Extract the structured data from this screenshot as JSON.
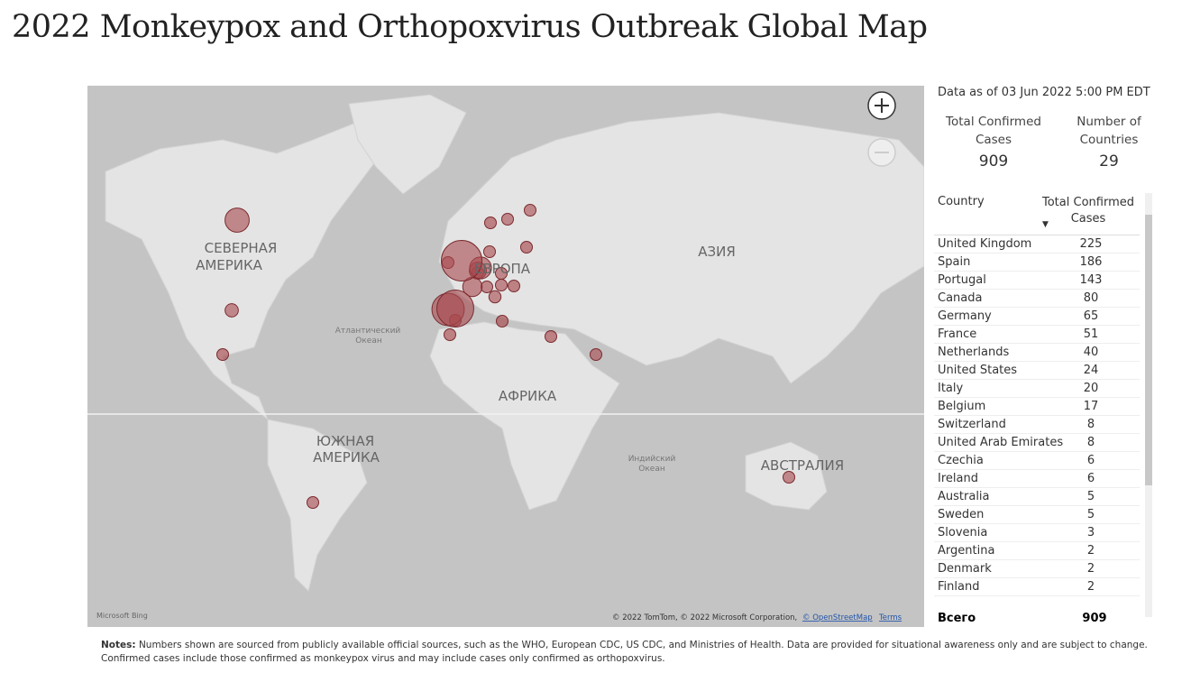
{
  "title": "2022 Monkeypox and Orthopoxvirus Outbreak Global Map",
  "map": {
    "labels": [
      "СЕВЕРНАЯ",
      "АМЕРИКА",
      "ЕВРОПА",
      "АЗИЯ",
      "АФРИКА",
      "ЮЖНАЯ",
      "АМЕРИКА",
      "АВСТРАЛИЯ"
    ],
    "oceans": [
      "Атлантический",
      "Океан",
      "Индийский",
      "Океан"
    ],
    "brand": "Microsoft Bing",
    "attribution": "© 2022 TomTom, © 2022 Microsoft Corporation,",
    "osm": "© OpenStreetMap",
    "terms": "Terms"
  },
  "as_of": "Data as of 03 Jun 2022 5:00 PM EDT",
  "kpis": [
    {
      "label": "Total Confirmed Cases",
      "value": "909"
    },
    {
      "label": "Number of Countries",
      "value": "29"
    }
  ],
  "table": {
    "columns": [
      "Country",
      "Total Confirmed Cases"
    ],
    "rows": [
      [
        "United Kingdom",
        225
      ],
      [
        "Spain",
        186
      ],
      [
        "Portugal",
        143
      ],
      [
        "Canada",
        80
      ],
      [
        "Germany",
        65
      ],
      [
        "France",
        51
      ],
      [
        "Netherlands",
        40
      ],
      [
        "United States",
        24
      ],
      [
        "Italy",
        20
      ],
      [
        "Belgium",
        17
      ],
      [
        "Switzerland",
        8
      ],
      [
        "United Arab Emirates",
        8
      ],
      [
        "Czechia",
        6
      ],
      [
        "Ireland",
        6
      ],
      [
        "Australia",
        5
      ],
      [
        "Sweden",
        5
      ],
      [
        "Slovenia",
        3
      ],
      [
        "Argentina",
        2
      ],
      [
        "Denmark",
        2
      ],
      [
        "Finland",
        2
      ]
    ],
    "total": [
      "Всего",
      909
    ]
  },
  "notes_label": "Notes:",
  "notes": "Numbers shown are sourced from publicly available official sources, such as the WHO, European CDC, US CDC, and Ministries of Health. Data are provided for situational awareness only and are subject to change. Confirmed cases include those confirmed as monkeypox virus and may include cases only confirmed as orthopoxvirus."
}
